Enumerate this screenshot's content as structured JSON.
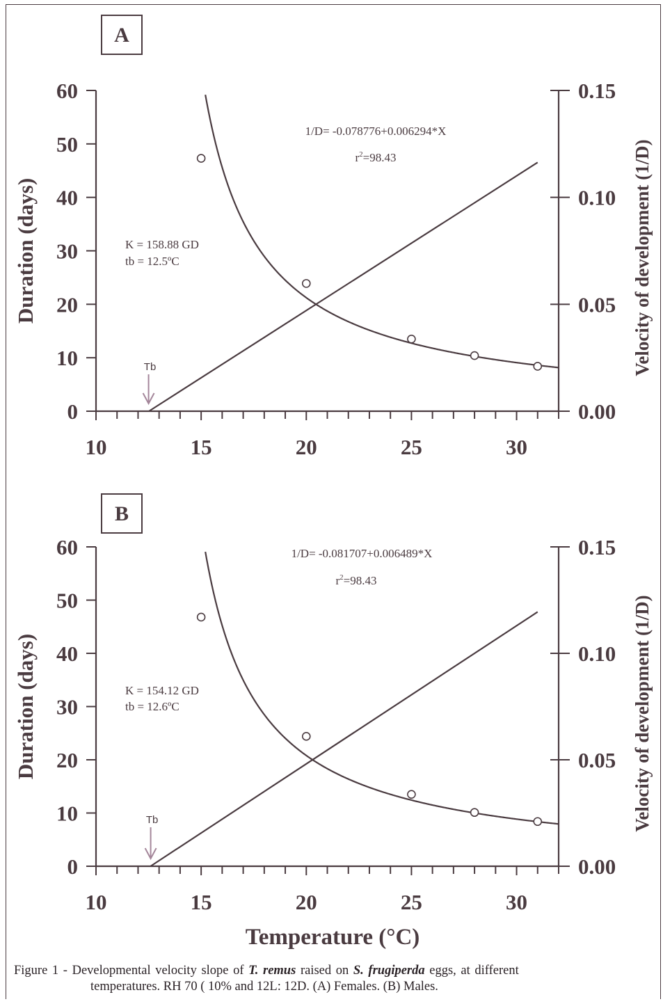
{
  "colors": {
    "line": "#4a3b40",
    "arrow": "#a4869a",
    "text": "#4a3b40"
  },
  "caption": {
    "prefix": "Figure 1 - Developmental velocity slope of ",
    "species1": "T. remus",
    "middle": " raised on ",
    "species2": "S. frugiperda",
    "suffix": " eggs, at different",
    "line2": "temperatures. RH 70 ( 10% and 12L: 12D. (A) Females. (B) Males."
  },
  "chart_data": [
    {
      "panel": "A",
      "type": "scatter",
      "xlabel": "",
      "ylabel": "Duration (days)",
      "y2label": "Velocity of development (1/D)",
      "xlim": [
        10,
        32
      ],
      "ylim": [
        0,
        60
      ],
      "y2lim": [
        0,
        0.15
      ],
      "xticks": [
        "10",
        "15",
        "20",
        "25",
        "30"
      ],
      "yticks": [
        "0",
        "10",
        "20",
        "30",
        "40",
        "50",
        "60"
      ],
      "y2ticks": [
        "0.00",
        "0.05",
        "0.10",
        "0.15"
      ],
      "points": {
        "x": [
          15,
          20,
          25,
          28,
          31
        ],
        "y": [
          47.3,
          23.9,
          13.5,
          10.4,
          8.4
        ]
      },
      "regression": {
        "intercept": -0.078776,
        "slope": 0.006294,
        "x_end": 31
      },
      "equation": "1/D= -0.078776+0.006294*X",
      "r2_prefix": "r",
      "r2_sup": "2",
      "r2_value": "=98.43",
      "K_text": "K = 158.88 GD",
      "tb_text": "tb = 12.5ºC",
      "tb_value": 12.5,
      "tb_label": "Tb"
    },
    {
      "panel": "B",
      "type": "scatter",
      "xlabel": "Temperature (°C)",
      "ylabel": "Duration (days)",
      "y2label": "Velocity of development (1/D)",
      "xlim": [
        10,
        32
      ],
      "ylim": [
        0,
        60
      ],
      "y2lim": [
        0,
        0.15
      ],
      "xticks": [
        "10",
        "15",
        "20",
        "25",
        "30"
      ],
      "yticks": [
        "0",
        "10",
        "20",
        "30",
        "40",
        "50",
        "60"
      ],
      "y2ticks": [
        "0.00",
        "0.05",
        "0.10",
        "0.15"
      ],
      "points": {
        "x": [
          15,
          20,
          25,
          28,
          31
        ],
        "y": [
          46.8,
          24.4,
          13.5,
          10.1,
          8.4
        ]
      },
      "regression": {
        "intercept": -0.081707,
        "slope": 0.006489,
        "x_end": 31
      },
      "equation": "1/D= -0.081707+0.006489*X",
      "r2_prefix": "r",
      "r2_sup": "2",
      "r2_value": "=98.43",
      "K_text": "K = 154.12 GD",
      "tb_text": "tb = 12.6ºC",
      "tb_value": 12.6,
      "tb_label": "Tb"
    }
  ]
}
